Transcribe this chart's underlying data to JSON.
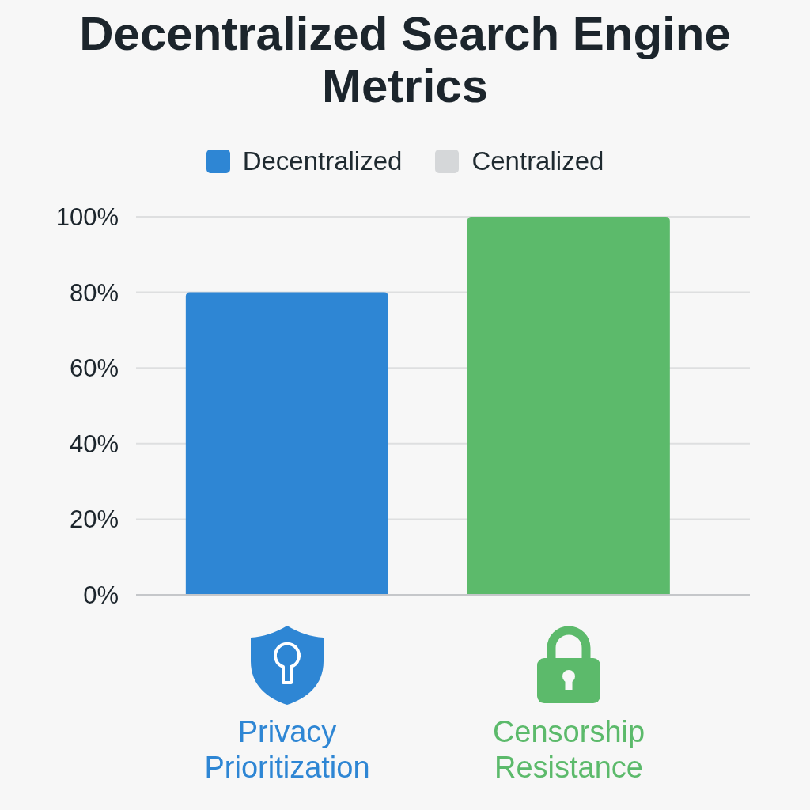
{
  "chart_data": {
    "type": "bar",
    "title": "Decentralized Search Engine Metrics",
    "categories": [
      "Privacy Prioritization",
      "Censorship Resistance"
    ],
    "series": [
      {
        "name": "Decentralized",
        "color": "#2e86d4",
        "colors": [
          "#2e86d4",
          "#5cba6b"
        ],
        "values": [
          80,
          100
        ]
      },
      {
        "name": "Centralized",
        "color": "#d5d7d9",
        "values": [
          null,
          null
        ]
      }
    ],
    "ylim": [
      0,
      100
    ],
    "yticks": [
      {
        "value": 0,
        "label": "0%"
      },
      {
        "value": 20,
        "label": "20%"
      },
      {
        "value": 40,
        "label": "40%"
      },
      {
        "value": 60,
        "label": "60%"
      },
      {
        "value": 80,
        "label": "80%"
      },
      {
        "value": 100,
        "label": "100%"
      }
    ],
    "grid": "y",
    "legend": "top"
  }
}
